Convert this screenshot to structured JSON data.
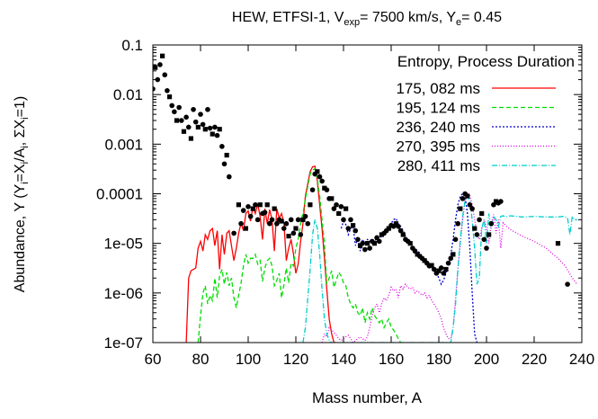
{
  "chart_data": {
    "type": "line",
    "title": {
      "main": "HEW, ETFSI-1, V",
      "sub1": "exp",
      "mid": "= 7500 km/s, Y",
      "sub2": "e",
      "tail": "= 0.45"
    },
    "xlabel": "Mass number, A",
    "ylabel": {
      "p1": "Abundance, Y (Y",
      "s1": "i",
      "p2": "=X",
      "s2": "i",
      "p3": "/A",
      "s3": "i",
      "p4": ", ΣX",
      "s4": "i",
      "p5": "=1)"
    },
    "xlim": [
      60,
      240
    ],
    "ylim": [
      1e-07,
      0.1
    ],
    "log_y": true,
    "xticks": [
      60,
      80,
      100,
      120,
      140,
      160,
      180,
      200,
      220,
      240
    ],
    "xtick_labels": [
      "60",
      "80",
      "100",
      "120",
      "140",
      "160",
      "180",
      "200",
      "220",
      "240"
    ],
    "yticks": [
      1e-07,
      1e-06,
      1e-05,
      0.0001,
      0.001,
      0.01,
      0.1
    ],
    "ytick_labels": [
      "1e-07",
      "1e-06",
      "1e-05",
      "0.0001",
      "0.001",
      "0.01",
      "0.1"
    ],
    "legend_title": "Entropy, Process Duration",
    "legend_position": "top-right",
    "series": [
      {
        "name": "175, 082 ms",
        "color": "#ff0000",
        "dash": "none",
        "x": [
          74,
          75,
          76,
          78,
          79,
          80,
          81,
          82,
          83,
          84,
          85,
          86,
          87,
          88,
          89,
          90,
          91,
          92,
          93,
          94,
          95,
          96,
          97,
          98,
          99,
          100,
          101,
          102,
          103,
          104,
          105,
          106,
          107,
          108,
          109,
          110,
          111,
          112,
          113,
          114,
          115,
          116,
          117,
          118,
          119,
          120,
          121,
          122,
          123,
          124,
          125,
          126,
          127,
          128,
          129,
          130,
          131,
          132,
          133,
          134,
          135,
          136,
          137
        ],
        "y": [
          1e-07,
          2e-06,
          2.8e-06,
          3.2e-06,
          8e-06,
          1.1e-05,
          7e-06,
          1.5e-05,
          1.2e-05,
          1.8e-05,
          2e-05,
          9e-06,
          1.8e-05,
          3e-06,
          1.5e-05,
          6e-06,
          1.6e-05,
          1.8e-05,
          9e-06,
          4.5e-06,
          8e-06,
          1.6e-05,
          2.6e-05,
          1.8e-05,
          4e-05,
          4.5e-05,
          2.8e-05,
          5.5e-05,
          4e-05,
          6.2e-05,
          3.5e-05,
          1.2e-05,
          5e-05,
          2.5e-05,
          4.8e-05,
          3e-05,
          7e-06,
          5e-05,
          3.2e-05,
          4e-05,
          2.5e-05,
          4.5e-06,
          8e-06,
          1.2e-05,
          6e-06,
          2.5e-06,
          3.8e-06,
          1.1e-05,
          2.5e-05,
          9e-05,
          0.00016,
          0.00028,
          0.00035,
          0.00036,
          0.00018,
          6e-05,
          2e-05,
          5e-06,
          1.2e-06,
          3e-07,
          1.5e-07,
          1e-07,
          1e-07
        ]
      },
      {
        "name": "195, 124 ms",
        "color": "#00dd00",
        "dash": "5,3",
        "x": [
          79,
          80,
          81,
          82,
          83,
          84,
          85,
          86,
          87,
          88,
          89,
          90,
          91,
          92,
          93,
          94,
          95,
          96,
          97,
          98,
          99,
          100,
          101,
          102,
          103,
          104,
          105,
          106,
          107,
          108,
          109,
          110,
          111,
          112,
          113,
          114,
          115,
          116,
          117,
          118,
          119,
          120,
          121,
          122,
          123,
          124,
          125,
          126,
          127,
          128,
          129,
          130,
          131,
          132,
          133,
          134,
          135,
          136,
          137,
          138,
          139,
          140,
          141,
          142,
          143,
          144,
          145,
          146,
          147,
          148,
          149,
          150,
          151,
          152,
          153,
          154,
          155,
          156,
          157,
          158,
          159,
          160,
          161,
          162,
          163,
          164
        ],
        "y": [
          1e-07,
          3.5e-07,
          1e-06,
          1.4e-06,
          6e-07,
          9e-07,
          7e-07,
          2e-06,
          8e-07,
          2.2e-06,
          3e-06,
          1.5e-06,
          2.6e-06,
          1.4e-06,
          2e-06,
          8e-07,
          5e-07,
          9e-07,
          1.6e-06,
          3.5e-06,
          6e-06,
          4e-06,
          5e-06,
          5e-06,
          6e-06,
          3.8e-06,
          4.5e-06,
          1.7e-06,
          3.2e-06,
          4.5e-06,
          5e-06,
          3.5e-06,
          1.4e-06,
          1.8e-06,
          2.5e-06,
          8e-07,
          1.5e-06,
          3.2e-06,
          1.6e-06,
          4e-06,
          3.5e-06,
          8e-06,
          1.2e-05,
          2.5e-05,
          4e-05,
          8e-05,
          0.00014,
          0.00025,
          0.0003,
          0.00032,
          0.0002,
          9e-05,
          3e-05,
          1e-05,
          1.5e-06,
          2e-06,
          2.8e-06,
          1.3e-06,
          1.8e-06,
          2.6e-06,
          2.2e-06,
          1.6e-06,
          1.4e-06,
          8e-07,
          6e-07,
          5e-07,
          6e-07,
          4e-07,
          3.5e-07,
          5e-07,
          2.5e-07,
          4e-07,
          3e-07,
          5e-07,
          3.5e-07,
          3e-07,
          2.5e-07,
          3e-07,
          2e-07,
          2.5e-07,
          3e-07,
          2e-07,
          1.8e-07,
          1.5e-07,
          1.2e-07,
          1e-07
        ]
      },
      {
        "name": "236, 240 ms",
        "color": "#0000cc",
        "dash": "2,2",
        "x": [
          139,
          140,
          141,
          142,
          143,
          144,
          145,
          146,
          147,
          148,
          149,
          150,
          151,
          152,
          153,
          154,
          155,
          156,
          157,
          158,
          159,
          160,
          161,
          162,
          163,
          164,
          165,
          166,
          167,
          168,
          169,
          170,
          171,
          172,
          173,
          174,
          175,
          176,
          177,
          178,
          179,
          180,
          181,
          182,
          183,
          184,
          185,
          186,
          187,
          188,
          189,
          190,
          191,
          192,
          193,
          194,
          195,
          196
        ],
        "y": [
          2e-05,
          2.8e-05,
          2.4e-05,
          1.5e-05,
          2e-05,
          2.2e-05,
          9e-06,
          1.3e-05,
          7e-06,
          1.2e-05,
          1e-05,
          1.2e-05,
          1.1e-05,
          1.2e-05,
          1e-05,
          1.4e-05,
          1.1e-05,
          1.5e-05,
          1.4e-05,
          1.6e-05,
          2.2e-05,
          2.5e-05,
          3e-05,
          3.2e-05,
          2.5e-05,
          2.2e-05,
          1.8e-05,
          1.4e-05,
          1.2e-05,
          1.1e-05,
          9e-06,
          8e-06,
          7e-06,
          6.5e-06,
          5.5e-06,
          5e-06,
          4.5e-06,
          3.5e-06,
          3.2e-06,
          3e-06,
          2.5e-06,
          2e-06,
          1.5e-06,
          1.8e-06,
          2.5e-06,
          3.5e-06,
          6e-06,
          1.2e-05,
          3e-05,
          6e-05,
          9e-05,
          0.0001,
          9e-05,
          4e-05,
          8e-06,
          1e-06,
          1.5e-07,
          1e-07
        ]
      },
      {
        "name": "270, 395 ms",
        "color": "#dd00dd",
        "dash": "1,2",
        "x": [
          131,
          132,
          133,
          134,
          135,
          136,
          137,
          138,
          139,
          140,
          141,
          142,
          143,
          144,
          145,
          146,
          147,
          148,
          149,
          150,
          151,
          152,
          153,
          154,
          155,
          156,
          157,
          158,
          159,
          160,
          161,
          162,
          163,
          164,
          165,
          166,
          167,
          168,
          169,
          170,
          171,
          172,
          173,
          174,
          175,
          176,
          177,
          178,
          179,
          180,
          181,
          182,
          183,
          184,
          185,
          186,
          187,
          188,
          189,
          190,
          191,
          192,
          193,
          194,
          195,
          196,
          197,
          198,
          199,
          200,
          201,
          202,
          203,
          204,
          205,
          206,
          207,
          208,
          210,
          215,
          220,
          225,
          230,
          233,
          236,
          238
        ],
        "y": [
          1e-07,
          1.5e-07,
          1.3e-07,
          2e-07,
          1.8e-07,
          1.6e-07,
          1.4e-07,
          1.2e-07,
          1.1e-07,
          1.2e-07,
          1.3e-07,
          1.4e-07,
          1.2e-07,
          1e-07,
          1.1e-07,
          1.2e-07,
          1.3e-07,
          1.2e-07,
          1.1e-07,
          1.3e-07,
          2e-07,
          3.5e-07,
          5e-07,
          6e-07,
          4e-07,
          6e-07,
          8e-07,
          7e-07,
          9e-07,
          1.3e-06,
          1.1e-06,
          1.2e-06,
          8e-07,
          1.4e-06,
          1.2e-06,
          1.5e-06,
          1.3e-06,
          1.2e-06,
          1.3e-06,
          1e-06,
          1.1e-06,
          1e-06,
          9e-07,
          1e-06,
          8e-07,
          9e-07,
          7e-07,
          6e-07,
          5e-07,
          4e-07,
          3e-07,
          2e-07,
          1.5e-07,
          1.2e-07,
          1.2e-07,
          2e-07,
          8e-07,
          3e-06,
          1e-05,
          3e-05,
          7e-05,
          0.0001,
          9e-05,
          6e-05,
          3e-05,
          1.5e-05,
          1.2e-05,
          2e-05,
          3e-05,
          2e-05,
          1e-05,
          2.5e-05,
          3.8e-05,
          1.6e-05,
          3e-05,
          8e-06,
          2.6e-05,
          2.3e-05,
          1.9e-05,
          1.4e-05,
          1.1e-05,
          8e-06,
          5e-06,
          3.5e-06,
          2e-06,
          1.5e-06
        ]
      },
      {
        "name": "280, 411 ms",
        "color": "#00cccc",
        "dash": "6,2,1,2",
        "x": [
          123,
          124,
          125,
          126,
          127,
          128,
          129,
          130,
          131,
          132,
          133,
          134,
          135,
          185,
          186,
          187,
          188,
          189,
          190,
          191,
          192,
          193,
          194,
          195,
          196,
          197,
          198,
          199,
          200,
          201,
          202,
          203,
          204,
          205,
          206,
          207,
          208,
          210,
          215,
          220,
          225,
          230,
          232,
          234,
          235,
          236,
          237,
          238
        ],
        "y": [
          1e-07,
          2e-07,
          8e-07,
          3e-06,
          1.5e-05,
          3e-05,
          2e-05,
          6e-06,
          1.2e-06,
          3e-07,
          1.5e-07,
          1.1e-07,
          1e-07,
          1e-07,
          2e-07,
          6e-07,
          3e-06,
          1.2e-05,
          3.5e-05,
          7e-05,
          9e-05,
          7e-05,
          3e-05,
          8e-06,
          1.5e-06,
          2e-06,
          2e-05,
          3e-05,
          1e-05,
          4e-05,
          2e-05,
          3.5e-05,
          3e-05,
          2.2e-05,
          3.5e-05,
          3.6e-05,
          3.4e-05,
          3.6e-05,
          3.4e-05,
          3.5e-05,
          3.4e-05,
          3.4e-05,
          3.5e-05,
          3.3e-05,
          1.5e-05,
          3.5e-05,
          3e-05,
          3e-05
        ]
      }
    ],
    "observed": {
      "x": [
        60,
        61,
        62,
        63,
        64,
        65,
        66,
        67,
        68,
        69,
        70,
        71,
        72,
        73,
        74,
        75,
        76,
        77,
        78,
        79,
        80,
        81,
        82,
        83,
        84,
        85,
        86,
        87,
        88,
        89,
        90,
        91,
        92,
        94,
        96,
        97,
        98,
        99,
        100,
        101,
        102,
        103,
        104,
        105,
        106,
        107,
        108,
        109,
        110,
        111,
        112,
        113,
        114,
        115,
        116,
        117,
        118,
        119,
        120,
        121,
        122,
        123,
        124,
        125,
        126,
        127,
        128,
        129,
        130,
        131,
        132,
        133,
        134,
        135,
        136,
        137,
        138,
        139,
        140,
        141,
        142,
        143,
        144,
        145,
        146,
        147,
        148,
        149,
        150,
        151,
        152,
        153,
        154,
        155,
        156,
        157,
        158,
        159,
        160,
        161,
        162,
        163,
        164,
        165,
        166,
        167,
        168,
        169,
        170,
        171,
        172,
        173,
        174,
        175,
        176,
        177,
        178,
        179,
        180,
        181,
        182,
        183,
        184,
        185,
        186,
        187,
        188,
        189,
        190,
        191,
        192,
        193,
        194,
        195,
        196,
        197,
        198,
        199,
        200,
        201,
        202,
        203,
        204,
        205,
        206,
        230,
        234
      ],
      "y": [
        0.013,
        0.035,
        0.02,
        0.04,
        0.06,
        0.025,
        0.012,
        0.009,
        0.006,
        0.0045,
        0.003,
        0.0055,
        0.003,
        0.0018,
        0.0035,
        0.0022,
        0.0013,
        0.005,
        0.0028,
        0.0022,
        0.004,
        0.0025,
        0.002,
        0.005,
        0.0021,
        0.0016,
        0.0022,
        0.0015,
        0.002,
        0.0009,
        0.0004,
        0.0006,
        0.00022,
        1.6e-05,
        6e-05,
        2.5e-05,
        4.6e-05,
        2e-05,
        5.5e-05,
        3.5e-05,
        5e-05,
        6e-05,
        3e-05,
        6e-05,
        4e-05,
        4.2e-05,
        6e-05,
        2.5e-05,
        3e-05,
        5e-05,
        2.5e-05,
        3e-05,
        2.8e-05,
        2e-05,
        2.5e-05,
        1.4e-05,
        3e-05,
        1.6e-05,
        2e-05,
        3e-05,
        1.5e-05,
        3e-05,
        3.5e-05,
        2.5e-05,
        6e-05,
        0.00012,
        0.00025,
        0.00028,
        0.00022,
        0.00018,
        0.00013,
        0.00012,
        8e-05,
        8e-05,
        5e-05,
        6e-05,
        4e-05,
        5.5e-05,
        3e-05,
        5e-05,
        2e-05,
        3e-05,
        2.3e-05,
        1.8e-05,
        1.2e-05,
        9e-06,
        1e-05,
        7.5e-06,
        1e-05,
        8e-06,
        1.1e-05,
        1e-05,
        1.3e-05,
        1.1e-05,
        1.5e-05,
        1.6e-05,
        1.8e-05,
        2e-05,
        2.3e-05,
        2.2e-05,
        2.5e-05,
        2.2e-05,
        1.8e-05,
        1.5e-05,
        1.2e-05,
        1.1e-05,
        1e-05,
        8e-06,
        7e-06,
        6e-06,
        5.5e-06,
        5e-06,
        4.5e-06,
        4e-06,
        3.5e-06,
        3.6e-06,
        3e-06,
        2.5e-06,
        2.8e-06,
        3.2e-06,
        2.5e-06,
        3e-06,
        4e-06,
        5e-06,
        6e-06,
        1.2e-05,
        2.5e-05,
        5e-05,
        8e-05,
        0.0001,
        9e-05,
        6e-05,
        5e-05,
        2e-05,
        1.5e-05,
        3e-05,
        4e-05,
        1.2e-05,
        8e-06,
        1.5e-05,
        2.5e-05,
        6e-05,
        7e-05,
        6.5e-05,
        7e-05,
        1e-05,
        1.5e-06
      ]
    }
  }
}
